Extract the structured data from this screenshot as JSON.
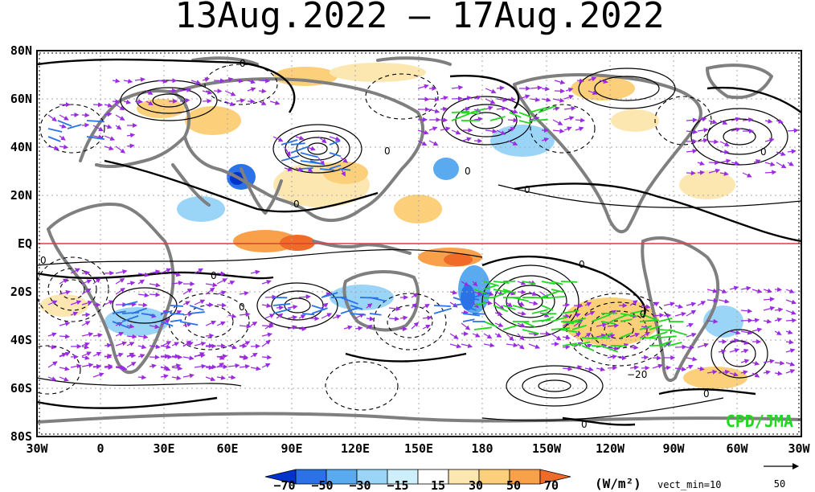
{
  "title": "13Aug.2022 – 17Aug.2022",
  "credit": "CPD/JMA",
  "lat_labels": [
    "80N",
    "60N",
    "40N",
    "20N",
    "EQ",
    "20S",
    "40S",
    "60S",
    "80S"
  ],
  "lon_labels": [
    "30W",
    "0",
    "30E",
    "60E",
    "90E",
    "120E",
    "150E",
    "180",
    "150W",
    "120W",
    "90W",
    "60W",
    "30W"
  ],
  "colorbar": {
    "ticks": [
      "−70",
      "−50",
      "−30",
      "−15",
      "15",
      "30",
      "50",
      "70"
    ],
    "colors": [
      "#0033cc",
      "#2a72e6",
      "#5aaaf0",
      "#9ad4f7",
      "#cdeefb",
      "#ffffff",
      "#fde7b0",
      "#fccf7a",
      "#f9a04a",
      "#f06a28"
    ],
    "units": "(W/m²)",
    "vect_min": "vect_min=10"
  },
  "reference_vector": {
    "label": "50"
  },
  "contour_labels": [
    "0",
    "0",
    "0",
    "0",
    "0",
    "0",
    "0",
    "0",
    "0",
    "0",
    "0",
    "0",
    "−20"
  ],
  "colors": {
    "land": "#7f7f7f",
    "equator": "#e03c3c",
    "vector": "#9a2be0",
    "contour": "#000000",
    "credit": "#1fd81f"
  }
}
